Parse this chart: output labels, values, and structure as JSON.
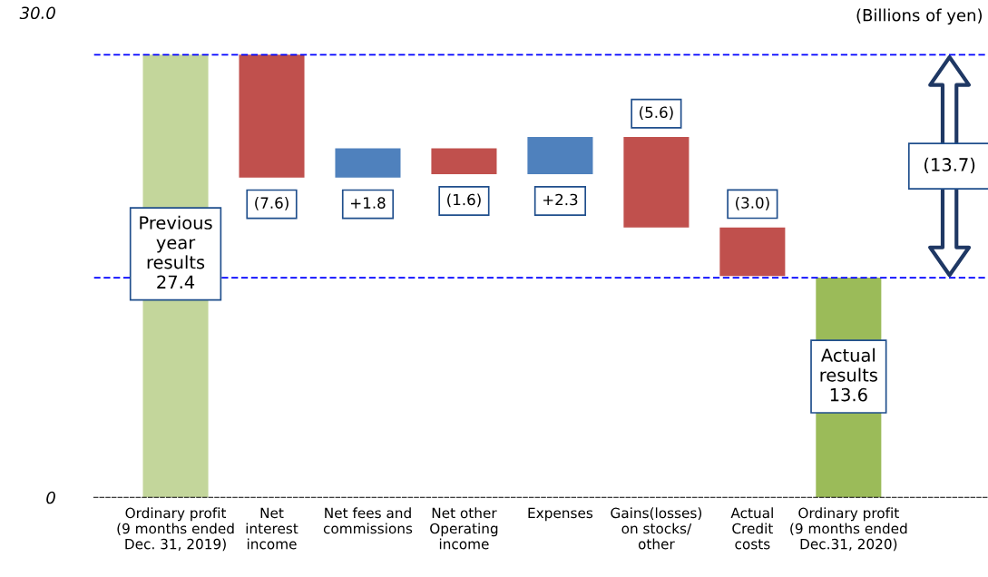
{
  "chart_data": {
    "type": "bar",
    "categories": [
      "Ordinary profit\n(9 months ended\nDec. 31, 2019)",
      "Net\ninterest\nincome",
      "Net fees and\ncommissions",
      "Net other\nOperating\nincome",
      "Expenses",
      "Gains(losses)\non stocks/\nother",
      "Actual\nCredit\ncosts",
      "Ordinary profit\n(9 months ended\nDec.31, 2020)"
    ],
    "values": [
      27.4,
      -7.6,
      1.8,
      -1.6,
      2.3,
      -5.6,
      -3.0,
      13.6
    ],
    "base": [
      0,
      27.4,
      19.8,
      21.6,
      20.0,
      22.3,
      16.7,
      0
    ],
    "colors": [
      "#c3d69b",
      "#c0504d",
      "#4f81bd",
      "#c0504d",
      "#4f81bd",
      "#c0504d",
      "#c0504d",
      "#9bbb59"
    ],
    "value_labels": [
      "Previous\nyear\nresults\n27.4",
      "(7.6)",
      "+1.8",
      "(1.6)",
      "+2.3",
      "(5.6)",
      "(3.0)",
      "Actual\nresults\n13.6"
    ],
    "ylim": [
      0,
      30
    ],
    "yticks": [
      0,
      {
        "value": 30,
        "label": "30.0"
      }
    ],
    "ref_lines": [
      {
        "axis": "y",
        "value": 27.4,
        "color": "#0000ff",
        "line_style": "dashed"
      },
      {
        "axis": "y",
        "value": 13.6,
        "color": "#0000ff",
        "line_style": "dashed"
      }
    ],
    "annotations": [
      "(Billions of yen)",
      "(13.7)"
    ],
    "grid": false,
    "legend": false
  }
}
